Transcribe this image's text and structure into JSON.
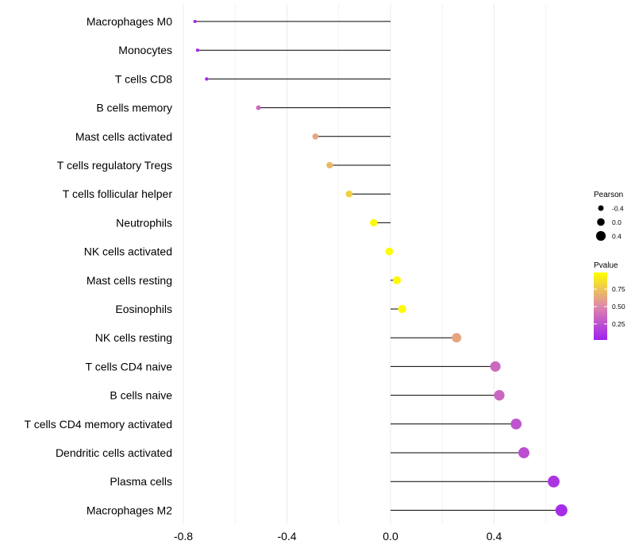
{
  "chart_data": {
    "type": "lollipop",
    "title": "",
    "xlabel": "",
    "ylabel": "",
    "xlim": [
      -0.8,
      0.68
    ],
    "xticks": [
      -0.8,
      -0.4,
      0.0,
      0.4
    ],
    "xtick_labels": [
      "-0.8",
      "-0.4",
      "0.0",
      "0.4"
    ],
    "grid": "vertical",
    "categories": [
      "Macrophages M0",
      "Monocytes",
      "T cells CD8",
      "B cells memory",
      "Mast cells activated",
      "T cells regulatory  Tregs ",
      "T cells follicular helper",
      "Neutrophils",
      "NK cells activated",
      "Mast cells resting",
      "Eosinophils",
      "NK cells resting",
      "T cells CD4 naive",
      "B cells naive",
      "T cells CD4 memory activated",
      "Dendritic cells activated",
      "Plasma cells",
      "Macrophages M2"
    ],
    "values": [
      -0.755,
      -0.745,
      -0.71,
      -0.51,
      -0.29,
      -0.235,
      -0.16,
      -0.065,
      -0.005,
      0.025,
      0.045,
      0.255,
      0.405,
      0.42,
      0.485,
      0.515,
      0.63,
      0.66
    ],
    "pvalues": [
      0.02,
      0.03,
      0.04,
      0.35,
      0.62,
      0.7,
      0.8,
      0.97,
      0.99,
      0.98,
      0.98,
      0.62,
      0.35,
      0.34,
      0.25,
      0.22,
      0.1,
      0.06
    ],
    "legend": {
      "size": {
        "title": "Pearson",
        "entries": [
          {
            "label": "-0.4",
            "value": -0.4
          },
          {
            "label": "0.0",
            "value": 0.0
          },
          {
            "label": "0.4",
            "value": 0.4
          }
        ]
      },
      "color": {
        "title": "Pvalue",
        "ticks": [
          {
            "label": "0.75",
            "value": 0.75
          },
          {
            "label": "0.50",
            "value": 0.5
          },
          {
            "label": "0.25",
            "value": 0.25
          }
        ],
        "low_color": "#a020f0",
        "mid_color": "#dd88aa",
        "high_color": "#ffff00"
      },
      "placement": "right"
    },
    "colors": {
      "stem": "#000000",
      "grid": "#ebebeb",
      "label": "#000000"
    }
  }
}
